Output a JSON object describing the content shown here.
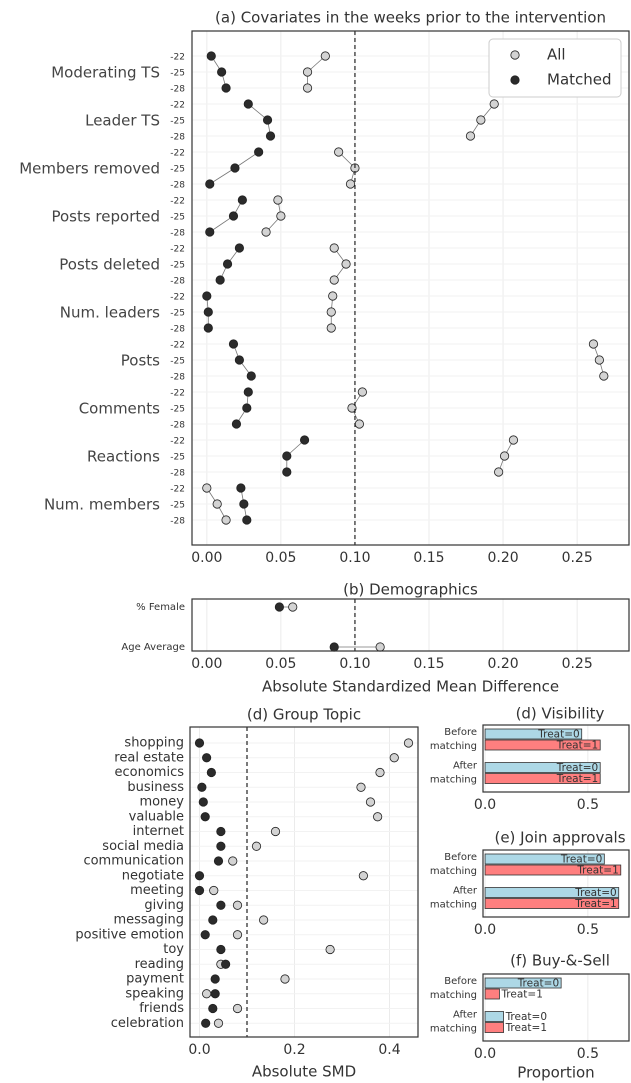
{
  "chart_data": [
    {
      "id": "a",
      "type": "scatter",
      "title": "(a) Covariates in the weeks prior to the intervention",
      "xlabel": "",
      "xlim": [
        -0.01,
        0.285
      ],
      "xticks": [
        "0.00",
        "0.05",
        "0.10",
        "0.15",
        "0.20",
        "0.25"
      ],
      "xtick_values": [
        0,
        0.05,
        0.1,
        0.15,
        0.2,
        0.25
      ],
      "reference_line": 0.1,
      "grid": true,
      "legend": {
        "position": "top-right",
        "entries": [
          "All",
          "Matched"
        ]
      },
      "week_labels": [
        "-22",
        "-25",
        "-28"
      ],
      "covariates": [
        {
          "name": "Moderating TS",
          "all": [
            0.08,
            0.068,
            0.068
          ],
          "matched": [
            0.003,
            0.01,
            0.013
          ]
        },
        {
          "name": "Leader TS",
          "all": [
            0.194,
            0.185,
            0.178
          ],
          "matched": [
            0.028,
            0.041,
            0.043
          ]
        },
        {
          "name": "Members removed",
          "all": [
            0.089,
            0.1,
            0.097
          ],
          "matched": [
            0.035,
            0.019,
            0.002
          ]
        },
        {
          "name": "Posts reported",
          "all": [
            0.048,
            0.05,
            0.04
          ],
          "matched": [
            0.024,
            0.018,
            0.002
          ]
        },
        {
          "name": "Posts deleted",
          "all": [
            0.086,
            0.094,
            0.086
          ],
          "matched": [
            0.022,
            0.014,
            0.009
          ]
        },
        {
          "name": "Num. leaders",
          "all": [
            0.085,
            0.084,
            0.084
          ],
          "matched": [
            0.0,
            0.001,
            0.001
          ]
        },
        {
          "name": "Posts",
          "all": [
            0.261,
            0.265,
            0.268
          ],
          "matched": [
            0.018,
            0.022,
            0.03
          ]
        },
        {
          "name": "Comments",
          "all": [
            0.105,
            0.098,
            0.103
          ],
          "matched": [
            0.028,
            0.027,
            0.02
          ]
        },
        {
          "name": "Reactions",
          "all": [
            0.207,
            0.201,
            0.197
          ],
          "matched": [
            0.066,
            0.054,
            0.054
          ]
        },
        {
          "name": "Num. members",
          "all": [
            0.0,
            0.007,
            0.013
          ],
          "matched": [
            0.023,
            0.025,
            0.027
          ]
        }
      ]
    },
    {
      "id": "b",
      "type": "scatter",
      "title": "(b) Demographics",
      "xlabel": "Absolute Standardized Mean Difference",
      "xlim": [
        -0.01,
        0.285
      ],
      "xticks": [
        "0.00",
        "0.05",
        "0.10",
        "0.15",
        "0.20",
        "0.25"
      ],
      "xtick_values": [
        0,
        0.05,
        0.1,
        0.15,
        0.2,
        0.25
      ],
      "reference_line": 0.1,
      "grid": true,
      "rows": [
        {
          "name": "% Female",
          "all": 0.058,
          "matched": 0.049
        },
        {
          "name": "Age Average",
          "all": 0.117,
          "matched": 0.086
        }
      ]
    },
    {
      "id": "d",
      "type": "scatter",
      "title": "(d) Group Topic",
      "xlabel": "Absolute SMD",
      "xlim": [
        -0.02,
        0.46
      ],
      "xticks": [
        "0.0",
        "0.2",
        "0.4"
      ],
      "xtick_values": [
        0,
        0.2,
        0.4
      ],
      "reference_line": 0.1,
      "grid": true,
      "rows": [
        {
          "name": "shopping",
          "all": 0.44,
          "matched": 0.0
        },
        {
          "name": "real estate",
          "all": 0.41,
          "matched": 0.015
        },
        {
          "name": "economics",
          "all": 0.38,
          "matched": 0.025
        },
        {
          "name": "business",
          "all": 0.34,
          "matched": 0.005
        },
        {
          "name": "money",
          "all": 0.36,
          "matched": 0.008
        },
        {
          "name": "valuable",
          "all": 0.375,
          "matched": 0.012
        },
        {
          "name": "internet",
          "all": 0.16,
          "matched": 0.045
        },
        {
          "name": "social media",
          "all": 0.12,
          "matched": 0.045
        },
        {
          "name": "communication",
          "all": 0.07,
          "matched": 0.04
        },
        {
          "name": "negotiate",
          "all": 0.345,
          "matched": 0.0
        },
        {
          "name": "meeting",
          "all": 0.03,
          "matched": 0.0
        },
        {
          "name": "giving",
          "all": 0.08,
          "matched": 0.045
        },
        {
          "name": "messaging",
          "all": 0.135,
          "matched": 0.028
        },
        {
          "name": "positive emotion",
          "all": 0.08,
          "matched": 0.012
        },
        {
          "name": "toy",
          "all": 0.275,
          "matched": 0.045
        },
        {
          "name": "reading",
          "all": 0.045,
          "matched": 0.055
        },
        {
          "name": "payment",
          "all": 0.18,
          "matched": 0.033
        },
        {
          "name": "speaking",
          "all": 0.015,
          "matched": 0.033
        },
        {
          "name": "friends",
          "all": 0.08,
          "matched": 0.028
        },
        {
          "name": "celebration",
          "all": 0.04,
          "matched": 0.013
        }
      ]
    },
    {
      "id": "vis",
      "type": "bar",
      "orientation": "horizontal",
      "title": "(d) Visibility",
      "xlabel": "",
      "xlim": [
        -0.01,
        0.7
      ],
      "xticks": [
        "0.0",
        "0.5"
      ],
      "xtick_values": [
        0,
        0.5
      ],
      "groups": [
        {
          "label": [
            "Before",
            "matching"
          ],
          "treat0": 0.47,
          "treat1": 0.56
        },
        {
          "label": [
            "After",
            "matching"
          ],
          "treat0": 0.56,
          "treat1": 0.56
        }
      ]
    },
    {
      "id": "join",
      "type": "bar",
      "orientation": "horizontal",
      "title": "(e) Join approvals",
      "xlabel": "",
      "xlim": [
        -0.01,
        0.7
      ],
      "xticks": [
        "0.0",
        "0.5"
      ],
      "xtick_values": [
        0,
        0.5
      ],
      "groups": [
        {
          "label": [
            "Before",
            "matching"
          ],
          "treat0": 0.58,
          "treat1": 0.66
        },
        {
          "label": [
            "After",
            "matching"
          ],
          "treat0": 0.65,
          "treat1": 0.65
        }
      ]
    },
    {
      "id": "buy",
      "type": "bar",
      "orientation": "horizontal",
      "title": "(f) Buy-&-Sell",
      "xlabel": "Proportion",
      "xlim": [
        -0.01,
        0.7
      ],
      "xticks": [
        "0.0",
        "0.5"
      ],
      "xtick_values": [
        0,
        0.5
      ],
      "groups": [
        {
          "label": [
            "Before",
            "matching"
          ],
          "treat0": 0.37,
          "treat1": 0.07
        },
        {
          "label": [
            "After",
            "matching"
          ],
          "treat0": 0.09,
          "treat1": 0.09
        }
      ]
    }
  ],
  "bar_labels": {
    "treat0": "Treat=0",
    "treat1": "Treat=1"
  },
  "colors": {
    "all": "#d3d3d3",
    "matched": "#2b2b2b",
    "treat0": "#add8e6",
    "treat1": "#ff7f7f",
    "grid": "#ebebeb",
    "text": "#444444"
  }
}
